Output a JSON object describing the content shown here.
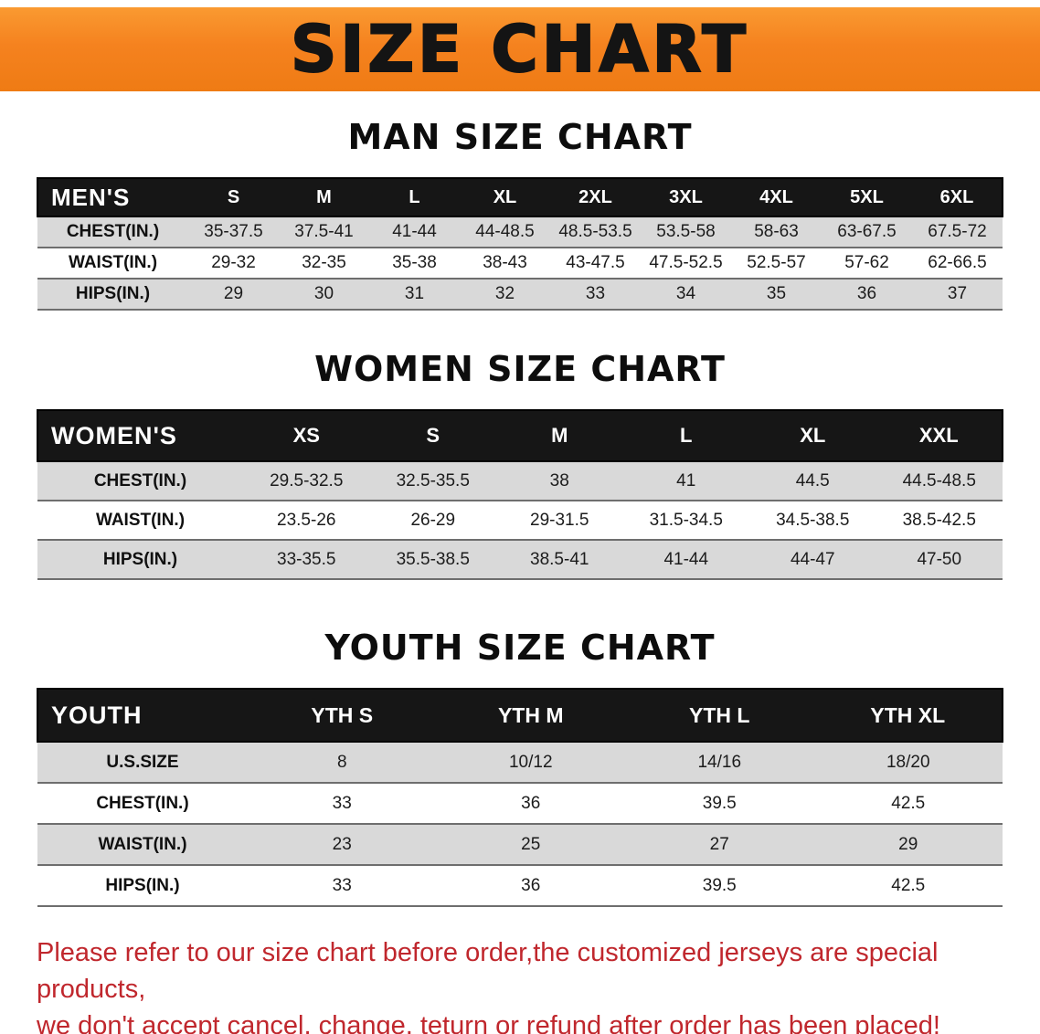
{
  "banner": {
    "title": "SIZE CHART",
    "bg_color": "#f5821f",
    "text_color": "#141414"
  },
  "sections": [
    {
      "heading": "MAN SIZE CHART",
      "table": {
        "corner": "MEN'S",
        "columns": [
          "S",
          "M",
          "L",
          "XL",
          "2XL",
          "3XL",
          "4XL",
          "5XL",
          "6XL"
        ],
        "rows": [
          {
            "label": "CHEST(IN.)",
            "values": [
              "35-37.5",
              "37.5-41",
              "41-44",
              "44-48.5",
              "48.5-53.5",
              "53.5-58",
              "58-63",
              "63-67.5",
              "67.5-72"
            ]
          },
          {
            "label": "WAIST(IN.)",
            "values": [
              "29-32",
              "32-35",
              "35-38",
              "38-43",
              "43-47.5",
              "47.5-52.5",
              "52.5-57",
              "57-62",
              "62-66.5"
            ]
          },
          {
            "label": "HIPS(IN.)",
            "values": [
              "29",
              "30",
              "31",
              "32",
              "33",
              "34",
              "35",
              "36",
              "37"
            ]
          }
        ]
      }
    },
    {
      "heading": "WOMEN SIZE CHART",
      "table": {
        "corner": "WOMEN'S",
        "columns": [
          "XS",
          "S",
          "M",
          "L",
          "XL",
          "XXL"
        ],
        "rows": [
          {
            "label": "CHEST(IN.)",
            "values": [
              "29.5-32.5",
              "32.5-35.5",
              "38",
              "41",
              "44.5",
              "44.5-48.5"
            ]
          },
          {
            "label": "WAIST(IN.)",
            "values": [
              "23.5-26",
              "26-29",
              "29-31.5",
              "31.5-34.5",
              "34.5-38.5",
              "38.5-42.5"
            ]
          },
          {
            "label": "HIPS(IN.)",
            "values": [
              "33-35.5",
              "35.5-38.5",
              "38.5-41",
              "41-44",
              "44-47",
              "47-50"
            ]
          }
        ]
      }
    },
    {
      "heading": "YOUTH SIZE CHART",
      "table": {
        "corner": "YOUTH",
        "columns": [
          "YTH S",
          "YTH M",
          "YTH L",
          "YTH XL"
        ],
        "rows": [
          {
            "label": "U.S.SIZE",
            "values": [
              "8",
              "10/12",
              "14/16",
              "18/20"
            ]
          },
          {
            "label": "CHEST(IN.)",
            "values": [
              "33",
              "36",
              "39.5",
              "42.5"
            ]
          },
          {
            "label": "WAIST(IN.)",
            "values": [
              "23",
              "25",
              "27",
              "29"
            ]
          },
          {
            "label": "HIPS(IN.)",
            "values": [
              "33",
              "36",
              "39.5",
              "42.5"
            ]
          }
        ]
      }
    }
  ],
  "footer": {
    "line1": "Please refer to our size chart before order,the customized jerseys are special products,",
    "line2": "we don't accept cancel, change, teturn or refund after order has been placed!",
    "text_color": "#c0272d"
  },
  "colors": {
    "table_header_bg": "#161616",
    "shaded_row_bg": "#d9d9d9",
    "banner_orange": "#f5821f"
  }
}
